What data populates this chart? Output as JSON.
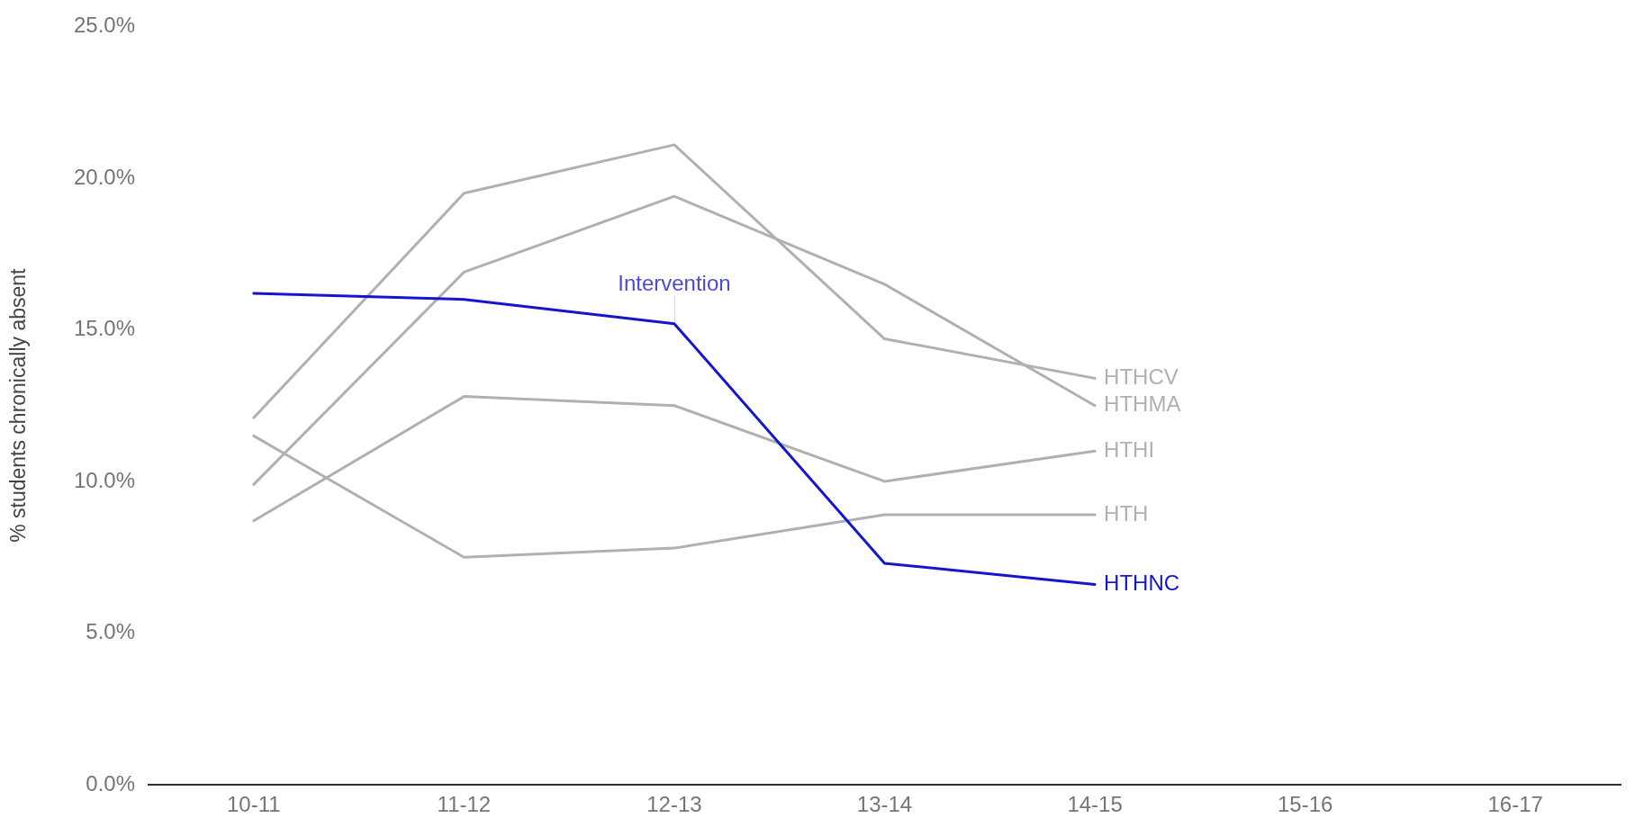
{
  "chart_data": {
    "type": "line",
    "ylabel": "% students chronically absent",
    "categories": [
      "10-11",
      "11-12",
      "12-13",
      "13-14",
      "14-15",
      "15-16",
      "16-17"
    ],
    "series": [
      {
        "name": "HTHCV",
        "color": "#b0b0b0",
        "values": [
          12.1,
          19.5,
          21.1,
          14.7,
          13.4,
          null,
          null
        ]
      },
      {
        "name": "HTHMA",
        "color": "#b0b0b0",
        "values": [
          9.9,
          16.9,
          19.4,
          16.5,
          12.5,
          null,
          null
        ]
      },
      {
        "name": "HTHI",
        "color": "#b0b0b0",
        "values": [
          8.7,
          12.8,
          12.5,
          10.0,
          11.0,
          null,
          null
        ]
      },
      {
        "name": "HTH",
        "color": "#b0b0b0",
        "values": [
          11.5,
          7.5,
          7.8,
          8.9,
          8.9,
          null,
          null
        ]
      },
      {
        "name": "HTHNC",
        "color": "#1515d0",
        "values": [
          16.2,
          16.0,
          15.2,
          7.3,
          6.6,
          null,
          null
        ]
      }
    ],
    "ylim": [
      0,
      25
    ],
    "yticks": [
      {
        "value": 0,
        "label": "0.0%"
      },
      {
        "value": 5,
        "label": "5.0%"
      },
      {
        "value": 10,
        "label": "10.0%"
      },
      {
        "value": 15,
        "label": "15.0%"
      },
      {
        "value": 20,
        "label": "20.0%"
      },
      {
        "value": 25,
        "label": "25.0%"
      }
    ],
    "annotations": [
      {
        "text": "Intervention",
        "x": "12-13",
        "y": 15.2
      }
    ],
    "grid": false,
    "legend": false
  }
}
